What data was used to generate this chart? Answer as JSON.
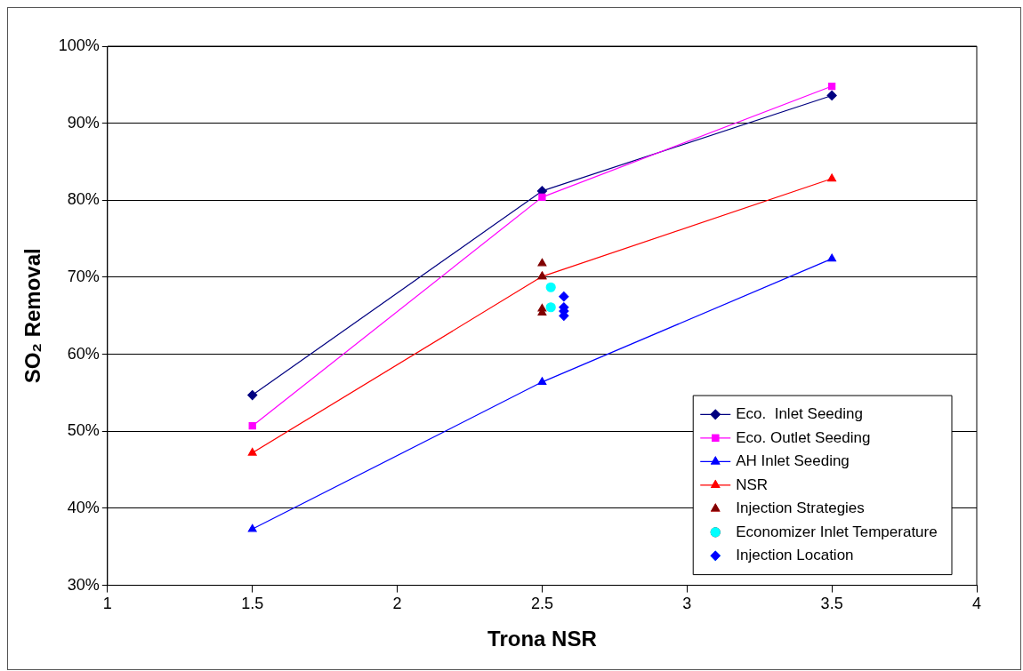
{
  "chart_data": {
    "type": "line",
    "xlabel": "Trona NSR",
    "ylabel": "SO₂ Removal",
    "xlim": [
      1,
      4
    ],
    "xticks": [
      1,
      1.5,
      2,
      2.5,
      3,
      3.5,
      4
    ],
    "ylim": [
      30,
      100
    ],
    "yticks": [
      {
        "value": 30,
        "label": "30%"
      },
      {
        "value": 40,
        "label": "40%"
      },
      {
        "value": 50,
        "label": "50%"
      },
      {
        "value": 60,
        "label": "60%"
      },
      {
        "value": 70,
        "label": "70%"
      },
      {
        "value": 80,
        "label": "80%"
      },
      {
        "value": 90,
        "label": "90%"
      },
      {
        "value": 100,
        "label": "100%"
      }
    ],
    "grid": "y",
    "legend": "bottom right",
    "series": [
      {
        "name": "Eco.  Inlet Seeding",
        "marker": "diamond",
        "color": "#000080",
        "x": [
          1.5,
          2.5,
          3.5
        ],
        "values": [
          54.7,
          81.2,
          93.6
        ]
      },
      {
        "name": "Eco. Outlet Seeding",
        "marker": "square",
        "color": "#ff00ff",
        "x": [
          1.5,
          2.5,
          3.5
        ],
        "values": [
          50.7,
          80.4,
          94.8
        ]
      },
      {
        "name": "AH Inlet Seeding",
        "marker": "triangle",
        "color": "#0000ff",
        "x": [
          1.5,
          2.5,
          3.5
        ],
        "values": [
          37.3,
          56.4,
          72.4
        ]
      },
      {
        "name": "NSR",
        "marker": "triangle",
        "color": "#ff0000",
        "x": [
          1.5,
          2.5,
          3.5
        ],
        "values": [
          47.2,
          70.1,
          82.8
        ]
      },
      {
        "name": "Injection Strategies",
        "type": "scatter",
        "marker": "triangle",
        "color": "#800000",
        "x": [
          2.5,
          2.5,
          2.5,
          2.5
        ],
        "values": [
          71.8,
          70.1,
          65.9,
          65.4
        ]
      },
      {
        "name": "Economizer Inlet Temperature",
        "type": "scatter",
        "marker": "circle",
        "color": "#00ffff",
        "x": [
          2.53,
          2.53
        ],
        "values": [
          68.7,
          66.1
        ]
      },
      {
        "name": "Injection Location",
        "type": "scatter",
        "marker": "diamond",
        "color": "#0000ff",
        "x": [
          2.575,
          2.575,
          2.575,
          2.575
        ],
        "values": [
          67.5,
          66.1,
          65.6,
          65.0
        ]
      }
    ]
  }
}
